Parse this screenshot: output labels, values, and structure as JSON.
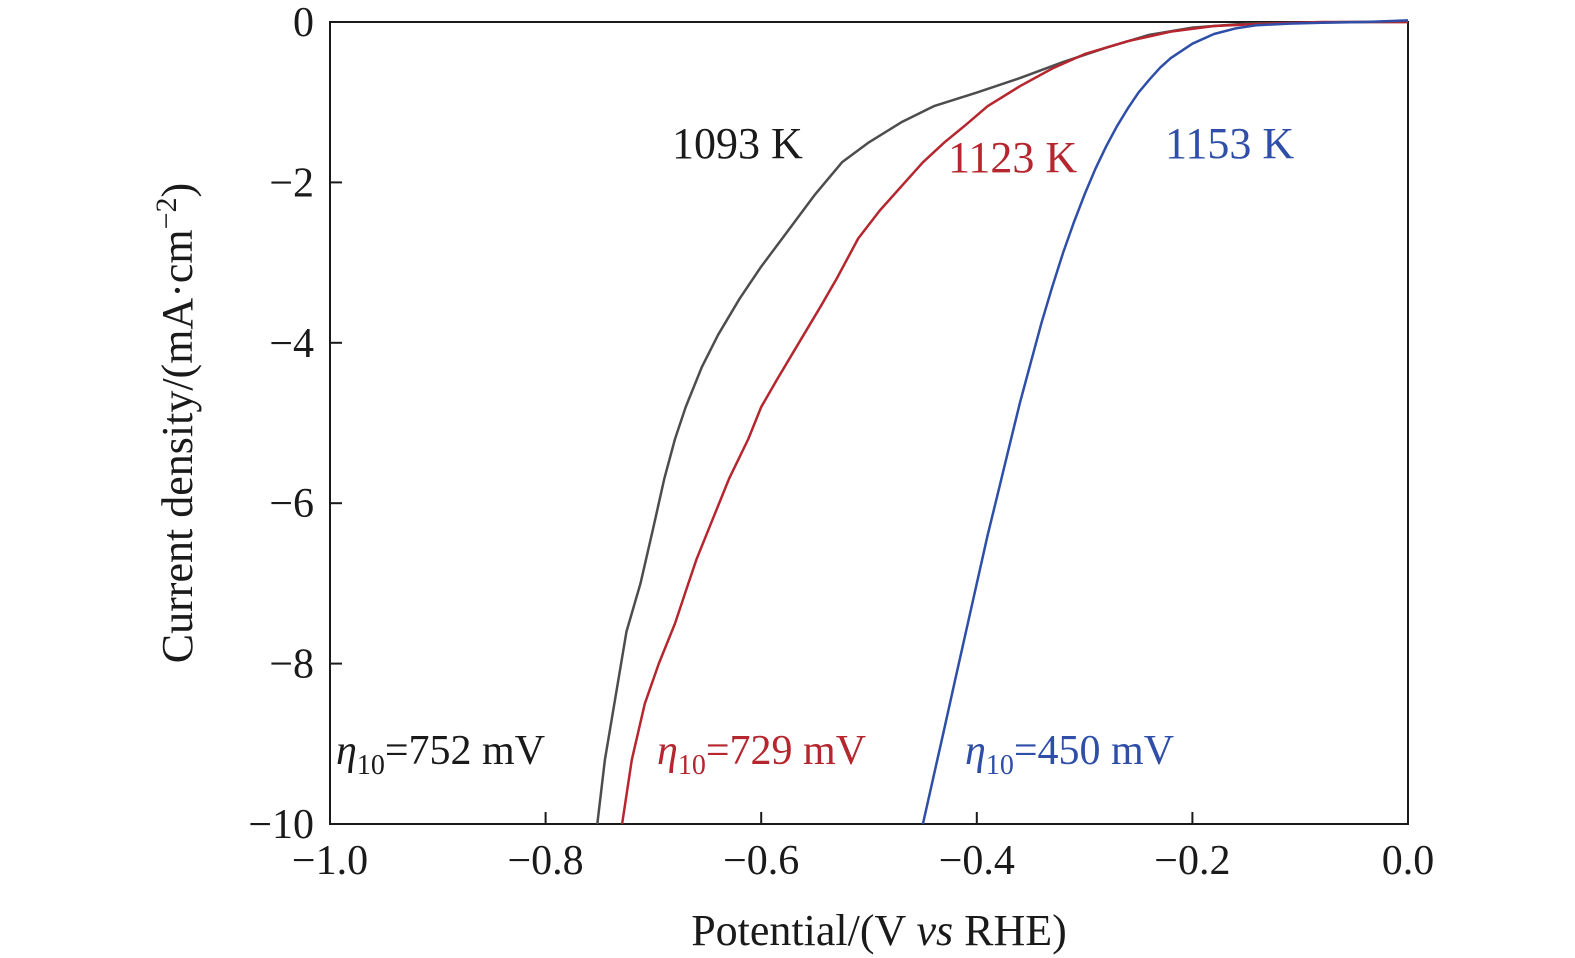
{
  "chart_data": {
    "type": "line",
    "xlabel": {
      "prefix": "Potential/(V ",
      "italic": "vs",
      "suffix": " RHE)"
    },
    "ylabel": {
      "prefix": "Current density/(mA·cm",
      "superscript": "−2",
      "suffix": ")"
    },
    "xlim": [
      -1.0,
      0.0
    ],
    "ylim": [
      -10,
      0
    ],
    "x_ticks": [
      -1.0,
      -0.8,
      -0.6,
      -0.4,
      -0.2,
      0.0
    ],
    "x_tick_labels": [
      "−1.0",
      "−0.8",
      "−0.6",
      "−0.4",
      "−0.2",
      "0.0"
    ],
    "y_ticks": [
      0,
      -2,
      -4,
      -6,
      -8,
      -10
    ],
    "y_tick_labels": [
      "0",
      "−2",
      "−4",
      "−6",
      "−8",
      "−10"
    ],
    "grid": false,
    "series": [
      {
        "name": "1093 K",
        "color": "#4d4d4f",
        "eta10": {
          "symbol": "η",
          "subscript": "10",
          "value_text": "=752 mV"
        },
        "points": [
          [
            -0.752,
            -10.0
          ],
          [
            -0.745,
            -9.2
          ],
          [
            -0.735,
            -8.4
          ],
          [
            -0.725,
            -7.6
          ],
          [
            -0.712,
            -7.0
          ],
          [
            -0.7,
            -6.3
          ],
          [
            -0.69,
            -5.7
          ],
          [
            -0.68,
            -5.2
          ],
          [
            -0.67,
            -4.8
          ],
          [
            -0.655,
            -4.3
          ],
          [
            -0.64,
            -3.9
          ],
          [
            -0.62,
            -3.45
          ],
          [
            -0.6,
            -3.05
          ],
          [
            -0.575,
            -2.6
          ],
          [
            -0.55,
            -2.15
          ],
          [
            -0.525,
            -1.75
          ],
          [
            -0.5,
            -1.5
          ],
          [
            -0.47,
            -1.25
          ],
          [
            -0.44,
            -1.05
          ],
          [
            -0.4,
            -0.88
          ],
          [
            -0.36,
            -0.7
          ],
          [
            -0.32,
            -0.5
          ],
          [
            -0.28,
            -0.32
          ],
          [
            -0.24,
            -0.16
          ],
          [
            -0.2,
            -0.07
          ],
          [
            -0.15,
            -0.02
          ],
          [
            -0.1,
            -0.01
          ],
          [
            -0.05,
            0.0
          ],
          [
            0.0,
            0.0
          ]
        ]
      },
      {
        "name": "1123 K",
        "color": "#b5262e",
        "eta10": {
          "symbol": "η",
          "subscript": "10",
          "value_text": "=729 mV"
        },
        "points": [
          [
            -0.729,
            -10.0
          ],
          [
            -0.72,
            -9.2
          ],
          [
            -0.708,
            -8.5
          ],
          [
            -0.695,
            -8.0
          ],
          [
            -0.68,
            -7.5
          ],
          [
            -0.67,
            -7.1
          ],
          [
            -0.66,
            -6.7
          ],
          [
            -0.645,
            -6.2
          ],
          [
            -0.63,
            -5.7
          ],
          [
            -0.612,
            -5.2
          ],
          [
            -0.6,
            -4.8
          ],
          [
            -0.585,
            -4.45
          ],
          [
            -0.565,
            -4.0
          ],
          [
            -0.545,
            -3.55
          ],
          [
            -0.53,
            -3.2
          ],
          [
            -0.51,
            -2.7
          ],
          [
            -0.49,
            -2.35
          ],
          [
            -0.47,
            -2.05
          ],
          [
            -0.45,
            -1.75
          ],
          [
            -0.43,
            -1.5
          ],
          [
            -0.41,
            -1.28
          ],
          [
            -0.39,
            -1.05
          ],
          [
            -0.36,
            -0.8
          ],
          [
            -0.33,
            -0.58
          ],
          [
            -0.3,
            -0.4
          ],
          [
            -0.26,
            -0.24
          ],
          [
            -0.22,
            -0.12
          ],
          [
            -0.18,
            -0.05
          ],
          [
            -0.13,
            -0.02
          ],
          [
            -0.08,
            0.0
          ],
          [
            0.0,
            0.0
          ]
        ]
      },
      {
        "name": "1153 K",
        "color": "#2e4ea8",
        "eta10": {
          "symbol": "η",
          "subscript": "10",
          "value_text": "=450 mV"
        },
        "points": [
          [
            -0.45,
            -10.0
          ],
          [
            -0.44,
            -9.4
          ],
          [
            -0.43,
            -8.8
          ],
          [
            -0.42,
            -8.2
          ],
          [
            -0.41,
            -7.6
          ],
          [
            -0.4,
            -7.0
          ],
          [
            -0.39,
            -6.4
          ],
          [
            -0.38,
            -5.85
          ],
          [
            -0.37,
            -5.3
          ],
          [
            -0.36,
            -4.75
          ],
          [
            -0.35,
            -4.25
          ],
          [
            -0.34,
            -3.75
          ],
          [
            -0.33,
            -3.3
          ],
          [
            -0.32,
            -2.88
          ],
          [
            -0.31,
            -2.5
          ],
          [
            -0.3,
            -2.15
          ],
          [
            -0.29,
            -1.83
          ],
          [
            -0.28,
            -1.55
          ],
          [
            -0.27,
            -1.3
          ],
          [
            -0.26,
            -1.08
          ],
          [
            -0.25,
            -0.88
          ],
          [
            -0.24,
            -0.72
          ],
          [
            -0.23,
            -0.57
          ],
          [
            -0.22,
            -0.45
          ],
          [
            -0.2,
            -0.27
          ],
          [
            -0.18,
            -0.15
          ],
          [
            -0.16,
            -0.08
          ],
          [
            -0.14,
            -0.04
          ],
          [
            -0.11,
            -0.02
          ],
          [
            -0.08,
            -0.01
          ],
          [
            -0.04,
            0.0
          ],
          [
            0.0,
            0.02
          ]
        ]
      }
    ]
  }
}
